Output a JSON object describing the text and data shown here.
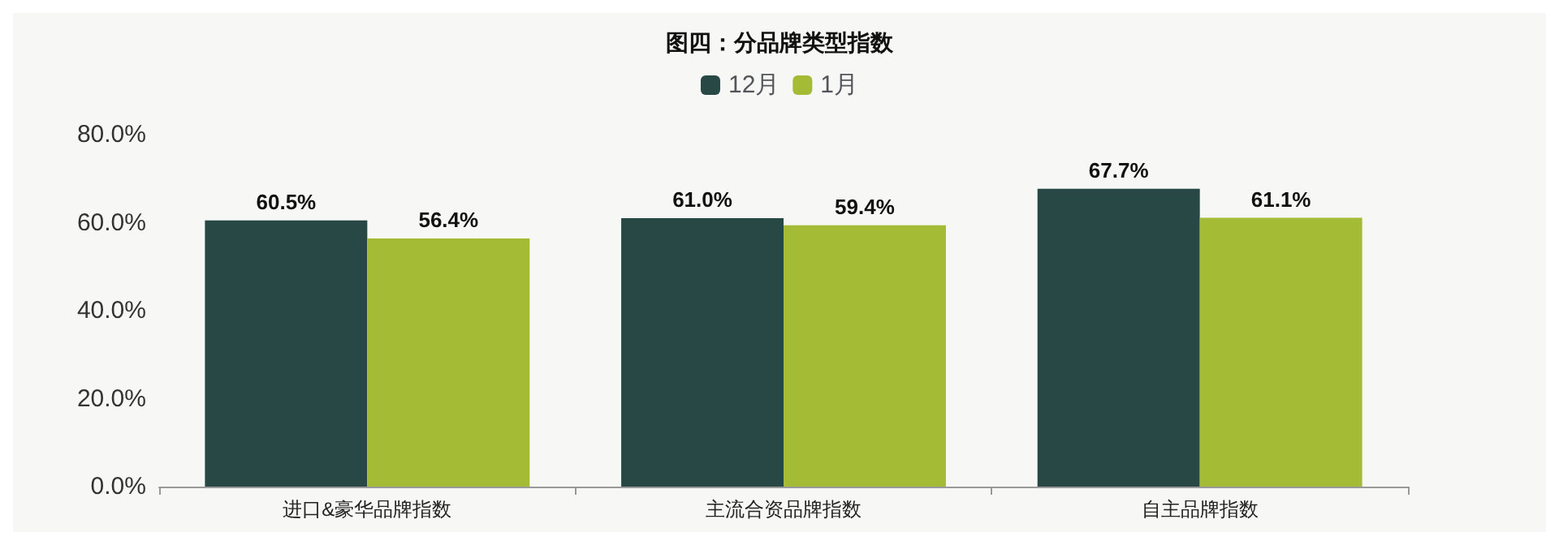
{
  "chart_data": {
    "type": "bar",
    "title": "图四：分品牌类型指数",
    "categories": [
      "进口&豪华品牌指数",
      "主流合资品牌指数",
      "自主品牌指数"
    ],
    "series": [
      {
        "name": "12月",
        "color": "#284846",
        "values": [
          60.5,
          61.0,
          67.7
        ],
        "value_labels": [
          "60.5%",
          "61.0%",
          "67.7%"
        ]
      },
      {
        "name": "1月",
        "color": "#a4bb35",
        "values": [
          56.4,
          59.4,
          61.1
        ],
        "value_labels": [
          "56.4%",
          "59.4%",
          "61.1%"
        ]
      }
    ],
    "ylim": [
      0,
      80
    ],
    "yticks": [
      {
        "value": 0,
        "label": "0.0%"
      },
      {
        "value": 20,
        "label": "20.0%"
      },
      {
        "value": 40,
        "label": "40.0%"
      },
      {
        "value": 60,
        "label": "60.0%"
      },
      {
        "value": 80,
        "label": "80.0%"
      }
    ],
    "grid": false,
    "legend": "top"
  }
}
